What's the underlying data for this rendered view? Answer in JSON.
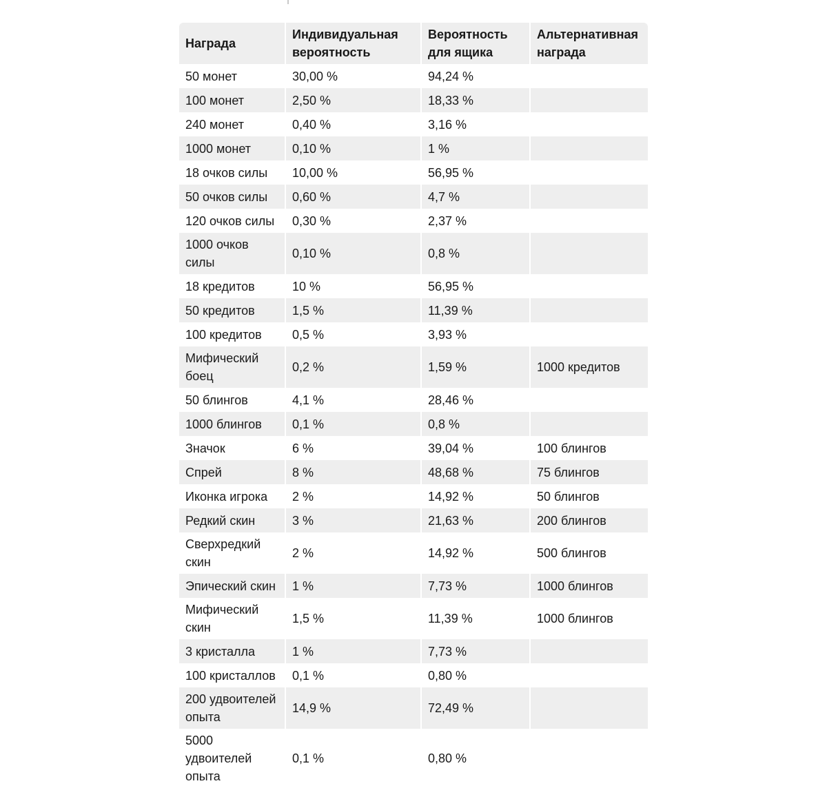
{
  "page": {
    "background_color": "#ffffff",
    "stripe_color": "#eeeeee",
    "text_color": "#1a1a1a"
  },
  "table": {
    "columns": [
      {
        "label": "Награда"
      },
      {
        "label": "Индивидуальная\nвероятность"
      },
      {
        "label": "Вероятность\nдля ящика"
      },
      {
        "label": "Альтернативная\nнаграда"
      }
    ],
    "rows": [
      [
        "50 монет",
        "30,00 %",
        "94,24 %",
        ""
      ],
      [
        "100 монет",
        "2,50 %",
        "18,33 %",
        ""
      ],
      [
        "240 монет",
        "0,40 %",
        "3,16 %",
        ""
      ],
      [
        "1000 монет",
        "0,10 %",
        "1 %",
        ""
      ],
      [
        "18 очков силы",
        "10,00 %",
        "56,95 %",
        ""
      ],
      [
        "50 очков силы",
        "0,60 %",
        "4,7 %",
        ""
      ],
      [
        "120 очков силы",
        "0,30 %",
        "2,37 %",
        ""
      ],
      [
        "1000 очков\nсилы",
        "0,10 %",
        "0,8 %",
        ""
      ],
      [
        "18 кредитов",
        "10 %",
        "56,95 %",
        ""
      ],
      [
        "50 кредитов",
        "1,5 %",
        "11,39 %",
        ""
      ],
      [
        "100 кредитов",
        "0,5 %",
        "3,93 %",
        ""
      ],
      [
        "Мифический\nбоец",
        "0,2 %",
        "1,59 %",
        "1000 кредитов"
      ],
      [
        "50 блингов",
        "4,1 %",
        "28,46 %",
        ""
      ],
      [
        "1000 блингов",
        "0,1 %",
        "0,8 %",
        ""
      ],
      [
        "Значок",
        "6 %",
        "39,04 %",
        "100 блингов"
      ],
      [
        "Спрей",
        "8 %",
        "48,68 %",
        "75 блингов"
      ],
      [
        "Иконка игрока",
        "2 %",
        "14,92 %",
        "50 блингов"
      ],
      [
        "Редкий скин",
        "3 %",
        "21,63 %",
        "200 блингов"
      ],
      [
        "Сверхредкий\nскин",
        "2 %",
        "14,92 %",
        "500 блингов"
      ],
      [
        "Эпический скин",
        "1 %",
        "7,73 %",
        "1000 блингов"
      ],
      [
        "Мифический\nскин",
        "1,5 %",
        "11,39 %",
        "1000 блингов"
      ],
      [
        "3 кристалла",
        "1 %",
        "7,73 %",
        ""
      ],
      [
        "100 кристаллов",
        "0,1 %",
        "0,80 %",
        ""
      ],
      [
        "200 удвоителей\nопыта",
        "14,9 %",
        "72,49 %",
        ""
      ],
      [
        "5000\nудвоителей\nопыта",
        "0,1 %",
        "0,80 %",
        ""
      ]
    ]
  }
}
